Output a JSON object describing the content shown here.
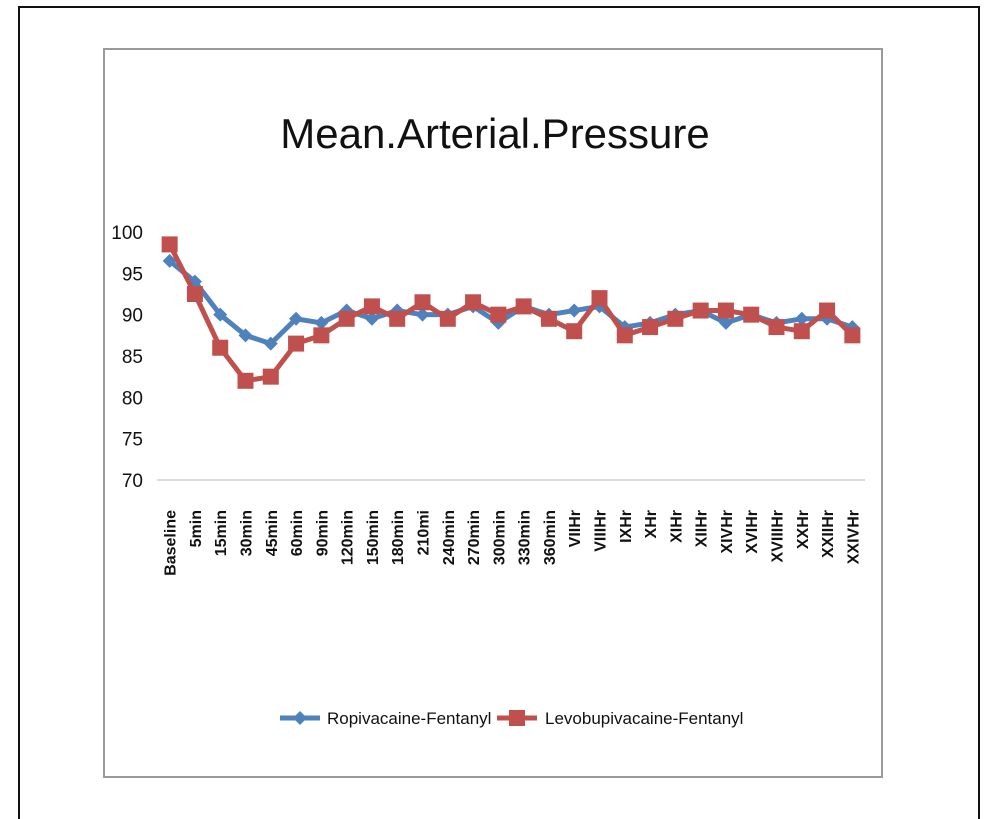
{
  "chart_data": {
    "type": "line",
    "title": "Mean.Arterial.Pressure",
    "xlabel": "",
    "ylabel": "",
    "ylim": [
      70,
      100
    ],
    "yticks": [
      70,
      75,
      80,
      85,
      90,
      95,
      100
    ],
    "grid": false,
    "legend_position": "bottom",
    "categories": [
      "Baseline",
      "5min",
      "15min",
      "30min",
      "45min",
      "60min",
      "90min",
      "120min",
      "150min",
      "180min",
      "210mi",
      "240min",
      "270min",
      "300min",
      "330min",
      "360min",
      "VIIHr",
      "VIIIHr",
      "IXHr",
      "XHr",
      "XIHr",
      "XIIHr",
      "XIVHr",
      "XVIHr",
      "XVIIIHr",
      "XXHr",
      "XXIIHr",
      "XXIVHr"
    ],
    "series": [
      {
        "name": "Ropivacaine-Fentanyl",
        "color": "#4f81bd",
        "marker": "diamond",
        "values": [
          96.5,
          94,
          90,
          87.5,
          86.5,
          89.5,
          89,
          90.5,
          89.5,
          90.5,
          90,
          90,
          91,
          89,
          91,
          90,
          90.5,
          91,
          88.5,
          89,
          90,
          90.5,
          89,
          90,
          89,
          89.5,
          89.5,
          88.5
        ]
      },
      {
        "name": "Levobupivacaine-Fentanyl",
        "color": "#c0504d",
        "marker": "square",
        "values": [
          98.5,
          92.5,
          86,
          82,
          82.5,
          86.5,
          87.5,
          89.5,
          91,
          89.5,
          91.5,
          89.5,
          91.5,
          90,
          91,
          89.5,
          88,
          92,
          87.5,
          88.5,
          89.5,
          90.5,
          90.5,
          90,
          88.5,
          88,
          90.5,
          87.5
        ]
      }
    ]
  }
}
